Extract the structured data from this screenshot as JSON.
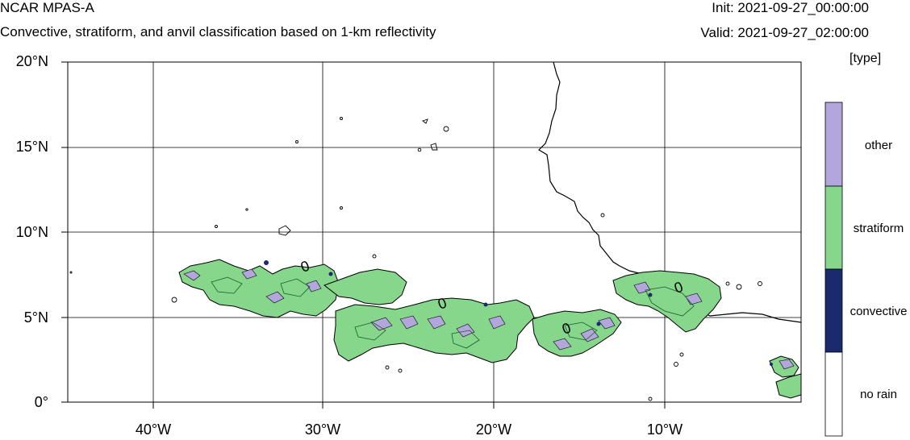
{
  "header": {
    "title": "NCAR MPAS-A",
    "subtitle": "Convective, stratiform, and anvil classification based on 1-km reflectivity",
    "init": "Init: 2021-09-27_00:00:00",
    "valid": "Valid: 2021-09-27_02:00:00"
  },
  "map": {
    "lat_ticks": [
      "20°N",
      "15°N",
      "10°N",
      "5°N",
      "0°"
    ],
    "lon_ticks": [
      "40°W",
      "30°W",
      "20°W",
      "10°W"
    ],
    "contour_label": "0"
  },
  "legend": {
    "units": "[type]",
    "items": [
      {
        "label": "other",
        "color": "#b3a6dc"
      },
      {
        "label": "stratiform",
        "color": "#86d68c"
      },
      {
        "label": "convective",
        "color": "#1a2a6e"
      },
      {
        "label": "no rain",
        "color": "#ffffff"
      }
    ]
  },
  "colors": {
    "land_outline": "#000000",
    "grid": "#000000"
  }
}
